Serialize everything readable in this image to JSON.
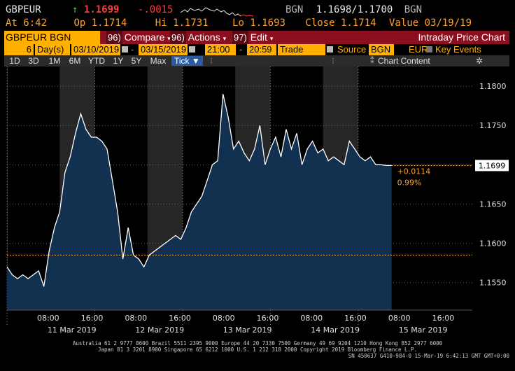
{
  "header": {
    "ticker": "GBPEUR",
    "arrow": "↑",
    "last": "1.1699",
    "change": "-.0015",
    "bid_label": "BGN",
    "bid_ask": "1.1698/1.1700",
    "ask_label": "BGN",
    "at_label": "At",
    "at_time": "6:42",
    "op_label": "Op",
    "open": "1.1714",
    "hi_label": "Hi",
    "high": "1.1731",
    "lo_label": "Lo",
    "low": "1.1693",
    "close_label": "Close",
    "close": "1.1714",
    "value_label": "Value",
    "value_date": "03/19/19"
  },
  "toolbar": {
    "security": "GBPEUR BGN Curncy",
    "compare_num": "96)",
    "compare_label": "Compare",
    "actions_num": "96)",
    "actions_label": "Actions",
    "edit_num": "97)",
    "edit_label": "Edit",
    "title": "Intraday Price Chart"
  },
  "settings": {
    "period_count": "6",
    "period_unit": "Day(s)",
    "start_date": "03/10/2019",
    "end_date": "03/15/2019",
    "start_time": "21:00",
    "end_time": "20:59",
    "mode": "Trade",
    "source_label": "Source",
    "source": "BGN",
    "currency": "EUR",
    "key_events_label": "Key Events"
  },
  "zoom": {
    "buttons": [
      "1D",
      "3D",
      "1M",
      "6M",
      "YTD",
      "1Y",
      "5Y",
      "Max"
    ],
    "tick_label": "Tick ▼",
    "chart_content_label": "Chart Content"
  },
  "colors": {
    "background": "#000000",
    "area_fill": "#12304f",
    "line": "#ffffff",
    "amber": "#ffa028",
    "price_tag_bg": "#ffffff",
    "shade": "#262626"
  },
  "chart_data": {
    "type": "area",
    "series_unit": "GBPEUR price",
    "ylim": [
      1.1515,
      1.1825
    ],
    "yticks": [
      1.155,
      1.16,
      1.165,
      1.17,
      1.175,
      1.18
    ],
    "ytick_labels": [
      "1.1550",
      "1.1600",
      "1.1650",
      "1.1700",
      "1.1750",
      "1.1800"
    ],
    "x_time_labels": [
      "08:00",
      "16:00",
      "08:00",
      "16:00",
      "08:00",
      "16:00",
      "08:00",
      "16:00",
      "08:00",
      "16:00"
    ],
    "x_day_labels": [
      "11 Mar 2019",
      "12 Mar 2019",
      "13 Mar 2019",
      "14 Mar 2019",
      "15 Mar 2019"
    ],
    "last_price_label": "1.1699",
    "change_abs": "+0.0114",
    "change_pct": "0.99%",
    "reference_level": 1.1585,
    "session_day_index": [
      0,
      0.6,
      1,
      1.6,
      2,
      2.6,
      3,
      3.6,
      4,
      4.6
    ],
    "x": [
      0.0,
      0.06,
      0.12,
      0.18,
      0.24,
      0.3,
      0.36,
      0.42,
      0.48,
      0.54,
      0.6,
      0.66,
      0.72,
      0.78,
      0.84,
      0.9,
      0.96,
      1.02,
      1.08,
      1.14,
      1.2,
      1.26,
      1.32,
      1.38,
      1.44,
      1.5,
      1.56,
      1.62,
      1.68,
      1.74,
      1.8,
      1.86,
      1.92,
      1.98,
      2.04,
      2.1,
      2.16,
      2.22,
      2.28,
      2.34,
      2.4,
      2.46,
      2.52,
      2.58,
      2.64,
      2.7,
      2.76,
      2.82,
      2.88,
      2.94,
      3.0,
      3.06,
      3.12,
      3.18,
      3.24,
      3.3,
      3.36,
      3.42,
      3.48,
      3.54,
      3.6,
      3.66,
      3.72,
      3.78,
      3.84,
      3.9,
      3.96,
      4.02,
      4.08,
      4.14,
      4.2,
      4.26,
      4.32,
      4.38
    ],
    "y": [
      1.157,
      1.156,
      1.1555,
      1.156,
      1.1555,
      1.156,
      1.1565,
      1.1545,
      1.159,
      1.162,
      1.164,
      1.169,
      1.171,
      1.174,
      1.1765,
      1.1745,
      1.1735,
      1.1735,
      1.173,
      1.172,
      1.168,
      1.164,
      1.158,
      1.162,
      1.1585,
      1.158,
      1.157,
      1.1585,
      1.159,
      1.1595,
      1.16,
      1.1605,
      1.161,
      1.1605,
      1.162,
      1.164,
      1.165,
      1.166,
      1.168,
      1.17,
      1.1705,
      1.179,
      1.176,
      1.172,
      1.173,
      1.1715,
      1.1705,
      1.172,
      1.175,
      1.17,
      1.172,
      1.1735,
      1.171,
      1.1745,
      1.172,
      1.174,
      1.17,
      1.172,
      1.173,
      1.1715,
      1.172,
      1.1705,
      1.171,
      1.1705,
      1.17,
      1.173,
      1.172,
      1.171,
      1.1705,
      1.171,
      1.17,
      1.17,
      1.1699,
      1.1699
    ]
  },
  "footer": {
    "line1": "Australia 61 2 9777 8600 Brazil 5511 2395 9000 Europe 44 20 7330 7500 Germany 49 69 9204 1210 Hong Kong 852 2977 6000",
    "line2": "Japan 81 3 3201 8900         Singapore 65 6212 1000        U.S. 1 212 318 2000           Copyright 2019 Bloomberg Finance L.P.",
    "line3": "SN 450637 G410-984-0 15-Mar-19  6:42:13 GMT  GMT+0:00"
  }
}
